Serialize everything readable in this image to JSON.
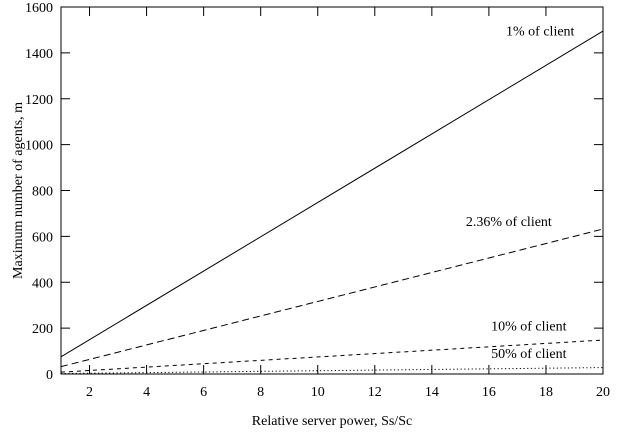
{
  "chart_data": {
    "type": "line",
    "title": "",
    "xlabel": "Relative server power, Ss/Sc",
    "ylabel": "Maximum number of agents, m",
    "xlim": [
      1,
      20
    ],
    "ylim": [
      0,
      1600
    ],
    "xticks": [
      2,
      4,
      6,
      8,
      10,
      12,
      14,
      16,
      18,
      20
    ],
    "yticks": [
      0,
      200,
      400,
      600,
      800,
      1000,
      1200,
      1400,
      1600
    ],
    "grid": false,
    "legend": "none",
    "series": [
      {
        "name": "1% of client",
        "style": "solid",
        "x": [
          1,
          20
        ],
        "y": [
          75,
          1495
        ]
      },
      {
        "name": "2.36% of client",
        "style": "dashed",
        "x": [
          1,
          20
        ],
        "y": [
          32,
          632
        ]
      },
      {
        "name": "10% of client",
        "style": "short-dashed",
        "x": [
          1,
          20
        ],
        "y": [
          8,
          148
        ]
      },
      {
        "name": "50% of client",
        "style": "dotted",
        "x": [
          1,
          20
        ],
        "y": [
          2,
          28
        ]
      }
    ],
    "annotations": [
      {
        "text": "1% of client",
        "x": 17.8,
        "y": 1475
      },
      {
        "text": "2.36% of client",
        "x": 16.7,
        "y": 645
      },
      {
        "text": "10% of client",
        "x": 17.4,
        "y": 190
      },
      {
        "text": "50% of client",
        "x": 17.4,
        "y": 70
      }
    ]
  }
}
